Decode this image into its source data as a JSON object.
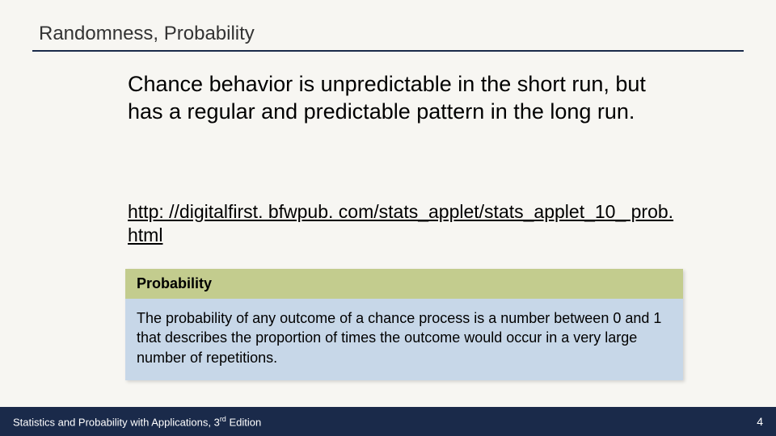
{
  "slide": {
    "title": "Randomness, Probability",
    "body_text": "Chance behavior is unpredictable in the short run, but has a regular and predictable pattern in the long run.",
    "link_text": "http: //digitalfirst. bfwpub. com/stats_applet/stats_applet_10_ prob. html",
    "definition": {
      "header": "Probability",
      "body": "The probability of any outcome of a chance process is a number between 0 and 1 that describes the proportion of times the outcome would occur in a very large number of repetitions."
    },
    "footer": {
      "book_title_prefix": "Statistics and Probability with Applications, 3",
      "book_title_sup": "rd",
      "book_title_suffix": " Edition",
      "page_number": "4"
    },
    "colors": {
      "background": "#f7f6f2",
      "title_border": "#1a2a4a",
      "def_header_bg": "#c3cc8e",
      "def_body_bg": "#c7d7e8",
      "footer_bg": "#1a2a4a",
      "footer_text": "#ffffff",
      "text": "#000000"
    },
    "typography": {
      "title_fontsize": 24,
      "body_fontsize": 27,
      "link_fontsize": 23,
      "def_header_fontsize": 18,
      "def_body_fontsize": 18,
      "footer_fontsize": 13
    }
  }
}
